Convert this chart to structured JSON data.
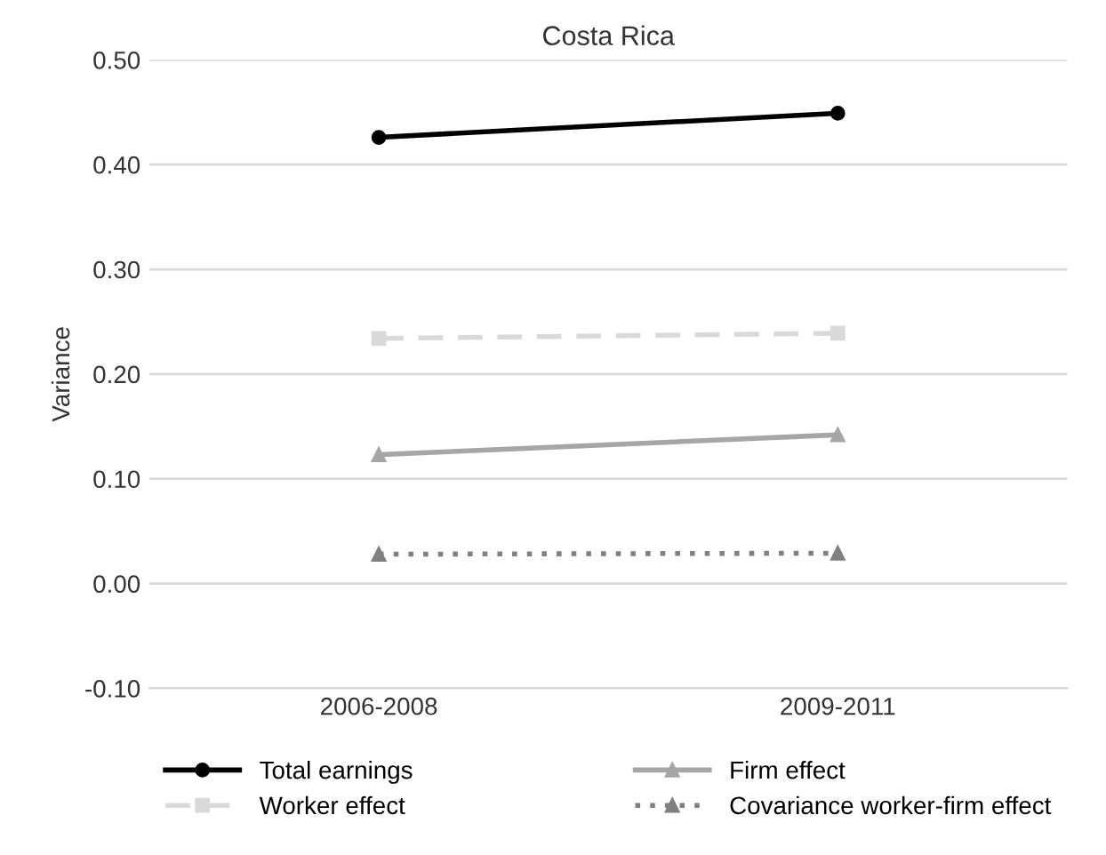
{
  "chart_data": {
    "type": "line",
    "title": "Costa Rica",
    "ylabel": "Variance",
    "categories": [
      "2006-2008",
      "2009-2011"
    ],
    "series": [
      {
        "name": "Total earnings",
        "color": "#000000",
        "values": [
          0.426,
          0.449
        ],
        "marker": "circle",
        "line_style": "solid"
      },
      {
        "name": "Worker effect",
        "color": "#d9d9d9",
        "values": [
          0.234,
          0.239
        ],
        "marker": "square",
        "line_style": "dashed"
      },
      {
        "name": "Firm effect",
        "color": "#a6a6a6",
        "values": [
          0.123,
          0.142
        ],
        "marker": "triangle",
        "line_style": "solid"
      },
      {
        "name": "Covariance worker-firm effect",
        "color": "#808080",
        "values": [
          0.028,
          0.029
        ],
        "marker": "triangle",
        "line_style": "dotted"
      }
    ],
    "ylim": [
      -0.1,
      0.5
    ],
    "yticks": [
      {
        "value": -0.1,
        "label": "-0.10"
      },
      {
        "value": 0,
        "label": "0.00"
      },
      {
        "value": 0.1,
        "label": "0.10"
      },
      {
        "value": 0.2,
        "label": "0.20"
      },
      {
        "value": 0.3,
        "label": "0.30"
      },
      {
        "value": 0.4,
        "label": "0.40"
      },
      {
        "value": 0.5,
        "label": "0.50"
      }
    ],
    "grid": "y",
    "legend": "bottom"
  }
}
